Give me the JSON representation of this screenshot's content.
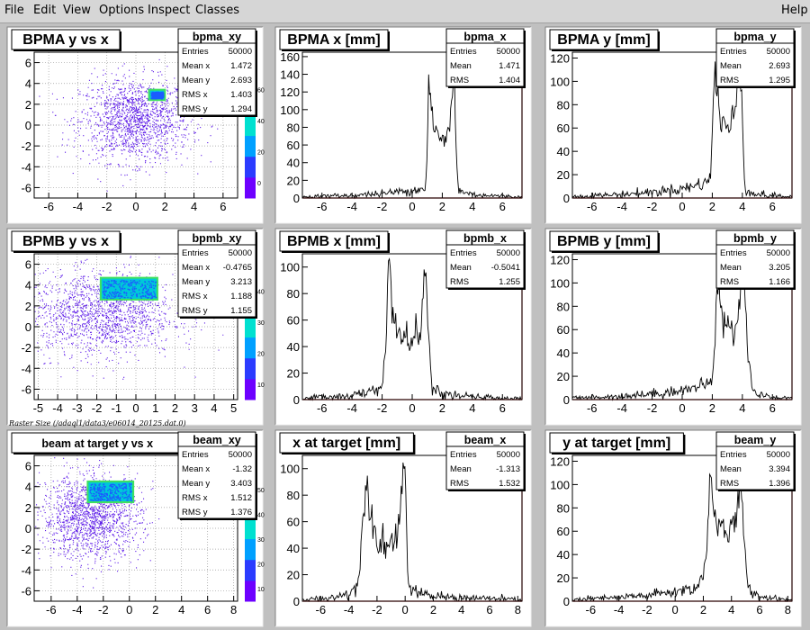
{
  "menu": [
    "File",
    "Edit",
    "View",
    "Options",
    "Inspect",
    "Classes"
  ],
  "help": "Help",
  "raster_label": "Raster Size (/adaql1/data3/e06014_20125.dat.0)",
  "colors": {
    "menubar": "#d6d6d6",
    "pad_bg": "#ffffff",
    "canvas_bg": "#c0c0c0",
    "hist_line": "#000000",
    "axis_red": "#cc0000",
    "scatter_point": "#5a17e8",
    "palette": [
      "#6d00ff",
      "#2b3bff",
      "#00a0ff",
      "#00e0d0",
      "#00f070",
      "#80f000",
      "#e0f000"
    ]
  },
  "chart_data": [
    {
      "id": "bpma-xy",
      "type": "heatmap",
      "title": "BPMA y vs x",
      "xlim": [
        -7,
        7
      ],
      "ylim": [
        -7,
        7
      ],
      "xticks": [
        -6,
        -4,
        -2,
        0,
        2,
        4,
        6
      ],
      "yticks": [
        -6,
        -4,
        -2,
        0,
        2,
        4,
        6
      ],
      "spot": {
        "x": [
          0.9,
          2.0
        ],
        "y": [
          2.4,
          3.4
        ]
      },
      "palette_ticks": [
        0,
        20,
        40,
        60
      ],
      "stats": {
        "name": "bpma_xy",
        "rows": [
          [
            "Entries",
            "50000"
          ],
          [
            "Mean x",
            "1.472"
          ],
          [
            "Mean y",
            "2.693"
          ],
          [
            "RMS x",
            "1.403"
          ],
          [
            "RMS y",
            "1.294"
          ]
        ]
      },
      "grid": true
    },
    {
      "id": "bpma-x",
      "type": "line",
      "title": "BPMA x [mm]",
      "xlim": [
        -7.3,
        7.3
      ],
      "ylim": [
        0,
        165
      ],
      "xticks": [
        -6,
        -4,
        -2,
        0,
        2,
        4,
        6
      ],
      "yticks": [
        0,
        20,
        40,
        60,
        80,
        100,
        120,
        140,
        160
      ],
      "x": [
        -7.3,
        -6,
        -4,
        -2,
        -1,
        0,
        0.5,
        0.9,
        1.0,
        1.1,
        1.25,
        1.5,
        1.75,
        2.0,
        2.25,
        2.5,
        2.65,
        2.8,
        2.9,
        3.05,
        3.2,
        4,
        6,
        7.3
      ],
      "y": [
        1,
        2,
        3,
        5,
        7,
        9,
        10,
        12,
        60,
        140,
        100,
        78,
        68,
        62,
        68,
        80,
        120,
        148,
        60,
        12,
        8,
        4,
        2,
        1
      ],
      "stats": {
        "name": "bpma_x",
        "rows": [
          [
            "Entries",
            "50000"
          ],
          [
            "Mean",
            "1.471"
          ],
          [
            "RMS",
            "1.404"
          ]
        ]
      },
      "grid": false
    },
    {
      "id": "bpma-y",
      "type": "line",
      "title": "BPMA y [mm]",
      "xlim": [
        -7.3,
        7.3
      ],
      "ylim": [
        0,
        125
      ],
      "xticks": [
        -6,
        -4,
        -2,
        0,
        2,
        4,
        6
      ],
      "yticks": [
        0,
        20,
        40,
        60,
        80,
        100,
        120
      ],
      "x": [
        -7.3,
        -6,
        -4,
        -2,
        0,
        1.0,
        1.5,
        1.9,
        2.0,
        2.15,
        2.35,
        2.6,
        2.9,
        3.2,
        3.5,
        3.7,
        3.85,
        4.0,
        4.15,
        4.3,
        5,
        6,
        7.3
      ],
      "y": [
        1,
        2,
        3,
        5,
        8,
        11,
        14,
        16,
        60,
        110,
        88,
        68,
        60,
        62,
        72,
        95,
        112,
        75,
        12,
        6,
        3,
        2,
        1
      ],
      "stats": {
        "name": "bpma_y",
        "rows": [
          [
            "Entries",
            "50000"
          ],
          [
            "Mean",
            "2.693"
          ],
          [
            "RMS",
            "1.295"
          ]
        ]
      },
      "grid": false
    },
    {
      "id": "bpmb-xy",
      "type": "heatmap",
      "title": "BPMB y vs x",
      "xlim": [
        -5.2,
        5.2
      ],
      "ylim": [
        -7,
        7
      ],
      "xticks": [
        -5,
        -4,
        -3,
        -2,
        -1,
        0,
        1,
        2,
        3,
        4,
        5
      ],
      "yticks": [
        -6,
        -4,
        -2,
        0,
        2,
        4,
        6
      ],
      "spot": {
        "x": [
          -1.8,
          1.1
        ],
        "y": [
          2.6,
          4.7
        ]
      },
      "palette_ticks": [
        10,
        20,
        30,
        40
      ],
      "stats": {
        "name": "bpmb_xy",
        "rows": [
          [
            "Entries",
            "50000"
          ],
          [
            "Mean x",
            "-0.4765"
          ],
          [
            "Mean y",
            "3.213"
          ],
          [
            "RMS x",
            "1.188"
          ],
          [
            "RMS y",
            "1.155"
          ]
        ]
      },
      "grid": true
    },
    {
      "id": "bpmb-x",
      "type": "line",
      "title": "BPMB x [mm]",
      "xlim": [
        -7.3,
        7.3
      ],
      "ylim": [
        0,
        110
      ],
      "xticks": [
        -6,
        -4,
        -2,
        0,
        2,
        4,
        6
      ],
      "yticks": [
        0,
        20,
        40,
        60,
        80,
        100
      ],
      "x": [
        -7.3,
        -6,
        -4,
        -3,
        -2.2,
        -1.9,
        -1.7,
        -1.55,
        -1.3,
        -1.0,
        -0.5,
        0,
        0.4,
        0.7,
        0.9,
        1.05,
        1.3,
        2,
        4,
        6,
        7.3
      ],
      "y": [
        1,
        2,
        3,
        5,
        9,
        16,
        60,
        102,
        68,
        52,
        45,
        44,
        52,
        68,
        102,
        55,
        8,
        4,
        2,
        1,
        1
      ],
      "stats": {
        "name": "bpmb_x",
        "rows": [
          [
            "Entries",
            "50000"
          ],
          [
            "Mean",
            "-0.5041"
          ],
          [
            "RMS",
            "1.255"
          ]
        ]
      },
      "grid": false
    },
    {
      "id": "bpmb-y",
      "type": "line",
      "title": "BPMB y [mm]",
      "xlim": [
        -7.3,
        7.3
      ],
      "ylim": [
        0,
        125
      ],
      "xticks": [
        -6,
        -4,
        -2,
        0,
        2,
        4,
        6
      ],
      "yticks": [
        0,
        20,
        40,
        60,
        80,
        100,
        120
      ],
      "x": [
        -7.3,
        -6,
        -4,
        -2,
        0,
        1.5,
        2.0,
        2.2,
        2.4,
        2.6,
        2.9,
        3.2,
        3.5,
        3.8,
        4.1,
        4.3,
        4.6,
        5.2,
        6,
        7.3
      ],
      "y": [
        1,
        2,
        3,
        5,
        8,
        12,
        18,
        60,
        103,
        75,
        62,
        58,
        62,
        78,
        118,
        60,
        10,
        4,
        2,
        1
      ],
      "stats": {
        "name": "bpmb_y",
        "rows": [
          [
            "Entries",
            "50000"
          ],
          [
            "Mean",
            "3.205"
          ],
          [
            "RMS",
            "1.166"
          ]
        ]
      },
      "grid": false
    },
    {
      "id": "beam-xy",
      "type": "heatmap",
      "title": "beam at target y vs x",
      "xlim": [
        -7.3,
        8.3
      ],
      "ylim": [
        -7,
        7
      ],
      "xticks": [
        -6,
        -4,
        -2,
        0,
        2,
        4,
        6,
        8
      ],
      "yticks": [
        -6,
        -4,
        -2,
        0,
        2,
        4,
        6
      ],
      "spot": {
        "x": [
          -3.2,
          0.3
        ],
        "y": [
          2.5,
          4.5
        ]
      },
      "palette_ticks": [
        10,
        20,
        30,
        40,
        50
      ],
      "stats": {
        "name": "beam_xy",
        "rows": [
          [
            "Entries",
            "50000"
          ],
          [
            "Mean x",
            "-1.32"
          ],
          [
            "Mean y",
            "3.403"
          ],
          [
            "RMS x",
            "1.512"
          ],
          [
            "RMS y",
            "1.376"
          ]
        ]
      },
      "grid": true
    },
    {
      "id": "beam-x",
      "type": "line",
      "title": "x at target [mm]",
      "xlim": [
        -7.3,
        8.3
      ],
      "ylim": [
        0,
        110
      ],
      "xticks": [
        -6,
        -4,
        -2,
        0,
        2,
        4,
        6,
        8
      ],
      "yticks": [
        0,
        20,
        40,
        60,
        80,
        100
      ],
      "x": [
        -7.3,
        -6,
        -5,
        -4,
        -3.3,
        -3.0,
        -2.8,
        -2.5,
        -2.0,
        -1.5,
        -1.0,
        -0.5,
        -0.2,
        0,
        0.2,
        1,
        3,
        6,
        8.3
      ],
      "y": [
        1,
        2,
        3,
        6,
        14,
        60,
        102,
        70,
        48,
        42,
        44,
        55,
        95,
        100,
        12,
        5,
        3,
        2,
        1
      ],
      "stats": {
        "name": "beam_x",
        "rows": [
          [
            "Entries",
            "50000"
          ],
          [
            "Mean",
            "-1.313"
          ],
          [
            "RMS",
            "1.532"
          ]
        ]
      },
      "grid": false
    },
    {
      "id": "beam-y",
      "type": "line",
      "title": "y at target [mm]",
      "xlim": [
        -7.3,
        8.3
      ],
      "ylim": [
        0,
        125
      ],
      "xticks": [
        -6,
        -4,
        -2,
        0,
        2,
        4,
        6,
        8
      ],
      "yticks": [
        0,
        20,
        40,
        60,
        80,
        100,
        120
      ],
      "x": [
        -7.3,
        -6,
        -4,
        -2,
        0,
        1.5,
        2.0,
        2.3,
        2.5,
        2.8,
        3.2,
        3.6,
        4.0,
        4.4,
        4.7,
        4.9,
        5.2,
        6,
        8.3
      ],
      "y": [
        1,
        2,
        3,
        5,
        8,
        12,
        20,
        60,
        112,
        75,
        60,
        55,
        62,
        80,
        100,
        45,
        10,
        4,
        1
      ],
      "stats": {
        "name": "beam_y",
        "rows": [
          [
            "Entries",
            "50000"
          ],
          [
            "Mean",
            "3.394"
          ],
          [
            "RMS",
            "1.396"
          ]
        ]
      },
      "grid": false
    }
  ]
}
